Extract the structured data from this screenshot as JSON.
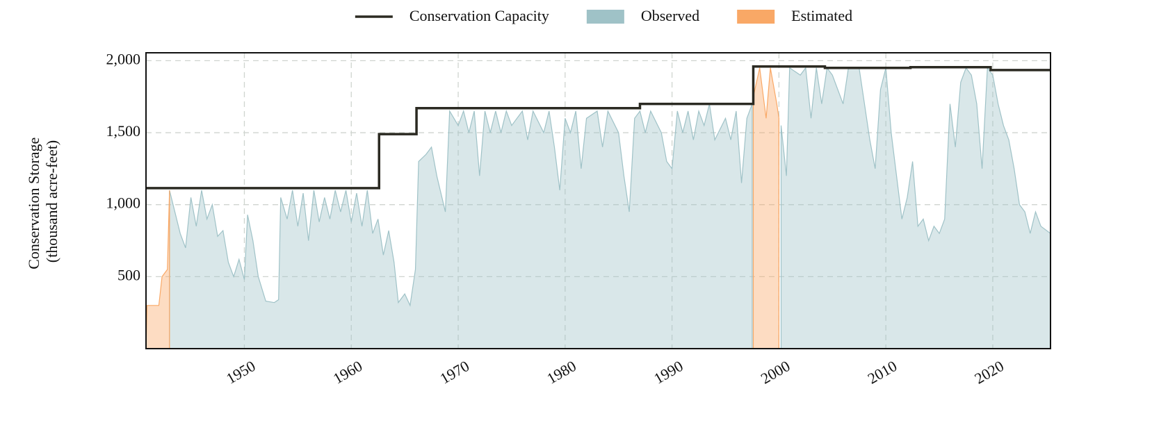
{
  "chart_data": {
    "type": "area",
    "ylabel": [
      "Conservation Storage",
      "(thousand acre-feet)"
    ],
    "legend": "top",
    "grid": true,
    "xlim": [
      1940.8,
      2025.4
    ],
    "ylim": [
      0,
      2055
    ],
    "xticks": [
      1950,
      1960,
      1970,
      1980,
      1990,
      2000,
      2010,
      2020
    ],
    "yticks": [
      500,
      {
        "value": 1000,
        "label": "1,000"
      },
      {
        "value": 1500,
        "label": "1,500"
      },
      {
        "value": 2000,
        "label": "2,000"
      }
    ],
    "series": [
      {
        "name": "Conservation Capacity",
        "kind": "step",
        "color": "#2b2a22",
        "x": [
          1940.8,
          1962.6,
          1966.1,
          1987.0,
          1997.6,
          2004.3,
          2012.3,
          2019.8,
          2025.4
        ],
        "values": [
          1115,
          1490,
          1670,
          1700,
          1960,
          1950,
          1955,
          1935,
          1935
        ]
      },
      {
        "name": "Observed",
        "kind": "area",
        "color": "#9fc2c7",
        "x": [
          1943.0,
          1943.5,
          1944,
          1944.5,
          1945,
          1945.5,
          1946,
          1946.5,
          1947,
          1947.5,
          1948,
          1948.5,
          1949,
          1949.5,
          1950,
          1950.3,
          1950.8,
          1951.3,
          1952,
          1952.8,
          1953.2,
          1953.4,
          1954,
          1954.5,
          1955,
          1955.5,
          1956,
          1956.5,
          1957,
          1957.5,
          1958,
          1958.5,
          1959,
          1959.5,
          1960,
          1960.5,
          1961,
          1961.5,
          1962,
          1962.5,
          1963,
          1963.5,
          1964,
          1964.4,
          1965,
          1965.5,
          1966,
          1966.3,
          1967,
          1967.5,
          1968,
          1968.8,
          1969.2,
          1970,
          1970.5,
          1971,
          1971.5,
          1972,
          1972.5,
          1973,
          1973.5,
          1974,
          1974.5,
          1975,
          1976,
          1976.5,
          1977,
          1978,
          1978.5,
          1979,
          1979.5,
          1980,
          1980.5,
          1981,
          1981.5,
          1982,
          1983,
          1983.5,
          1984,
          1985,
          1985.5,
          1986,
          1986.5,
          1987,
          1987.5,
          1988,
          1989,
          1989.5,
          1990,
          1990.5,
          1991,
          1991.5,
          1992,
          1992.5,
          1993,
          1993.5,
          1994,
          1995,
          1995.5,
          1996,
          1996.5,
          1997,
          1997.5,
          null,
          2000.2,
          2000.7,
          2001,
          2002,
          2002.5,
          2003,
          2003.5,
          2004,
          2004.5,
          2005,
          2006,
          2006.5,
          2007.5,
          2008,
          2008.5,
          2009,
          2009.5,
          2010,
          2010.5,
          2011,
          2011.5,
          2012,
          2012.5,
          2013,
          2013.5,
          2014,
          2014.5,
          2015,
          2015.5,
          2016,
          2016.5,
          2017,
          2017.5,
          2018,
          2018.5,
          2019,
          2019.5,
          2020,
          2020.5,
          2021,
          2021.5,
          2022,
          2022.5,
          2023,
          2023.5,
          2024,
          2024.5,
          2025.4
        ],
        "values": [
          1100,
          950,
          800,
          700,
          1050,
          850,
          1100,
          900,
          1000,
          780,
          820,
          600,
          500,
          620,
          480,
          930,
          750,
          500,
          330,
          320,
          340,
          1050,
          900,
          1100,
          850,
          1080,
          750,
          1100,
          880,
          1050,
          900,
          1100,
          950,
          1100,
          880,
          1080,
          850,
          1100,
          800,
          900,
          650,
          820,
          600,
          320,
          380,
          300,
          550,
          1300,
          1350,
          1400,
          1200,
          950,
          1650,
          1550,
          1650,
          1500,
          1650,
          1200,
          1650,
          1500,
          1650,
          1500,
          1650,
          1550,
          1650,
          1450,
          1650,
          1500,
          1650,
          1400,
          1100,
          1600,
          1500,
          1650,
          1250,
          1600,
          1650,
          1400,
          1650,
          1500,
          1200,
          950,
          1600,
          1650,
          1500,
          1650,
          1500,
          1300,
          1250,
          1650,
          1500,
          1650,
          1450,
          1650,
          1550,
          1700,
          1450,
          1600,
          1450,
          1650,
          1150,
          1600,
          1700,
          null,
          1550,
          1200,
          1950,
          1900,
          1950,
          1600,
          1950,
          1700,
          1950,
          1900,
          1700,
          1950,
          1950,
          1700,
          1450,
          1250,
          1800,
          1950,
          1500,
          1200,
          900,
          1050,
          1300,
          850,
          900,
          750,
          850,
          800,
          900,
          1700,
          1400,
          1850,
          1950,
          1900,
          1700,
          1250,
          1950,
          1900,
          1700,
          1550,
          1450,
          1250,
          1000,
          950,
          800,
          950,
          850,
          800
        ]
      },
      {
        "name": "Estimated",
        "kind": "area",
        "color": "#f9a866",
        "x": [
          1940.8,
          1940.9,
          1942,
          1942.3,
          1942.8,
          1943.0,
          null,
          1997.6,
          1998.2,
          1998.8,
          1999.2,
          1999.8,
          2000.0
        ],
        "values": [
          0,
          300,
          300,
          500,
          550,
          1100,
          null,
          1750,
          1950,
          1600,
          1950,
          1700,
          1600
        ]
      }
    ]
  }
}
